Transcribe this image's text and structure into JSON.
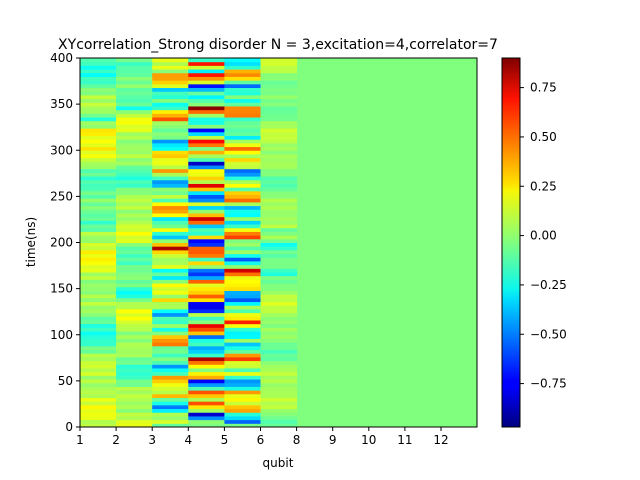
{
  "chart_data": {
    "type": "heatmap",
    "title": "XYcorrelation_Strong disorder  N =  3,excitation=4,correlator=7",
    "xlabel": "qubit",
    "ylabel": "time(ns)",
    "x_tick_labels": [
      "1",
      "2",
      "3",
      "4",
      "5",
      "6",
      "8",
      "9",
      "10",
      "11",
      "12"
    ],
    "y_ticks": [
      0,
      50,
      100,
      150,
      200,
      250,
      300,
      350,
      400
    ],
    "ylim": [
      0,
      400
    ],
    "colorbar": {
      "colormap": "jet",
      "vmin": -0.97,
      "vmax": 0.9,
      "ticks": [
        -0.75,
        -0.5,
        -0.25,
        0.0,
        0.25,
        0.5,
        0.75
      ],
      "tick_labels": [
        "−0.75",
        "−0.50",
        "−0.25",
        "0.00",
        "0.25",
        "0.50",
        "0.75"
      ]
    },
    "columns": [
      {
        "qubit": "1",
        "character": "slow oscillation between about -0.2 and 0.3, strongest near 320 ns (0.3) and 210 ns (0.25)"
      },
      {
        "qubit": "2",
        "character": "oscillation between about -0.3 and 0.2, dips near 345 ns and 145 ns"
      },
      {
        "qubit": "3",
        "character": "fast oscillation, amplitude about 0.5, peaks near 370, 215, 195, 165 ns"
      },
      {
        "qubit": "4",
        "character": "strongest, fast oscillation with amplitude near 0.9, extremes near 390 ns and 200 ns"
      },
      {
        "qubit": "5",
        "character": "fast oscillation, amplitude about 0.5 to 0.9, minimum near 395 ns"
      },
      {
        "qubit": "6",
        "character": "weaker oscillation, about -0.3 to 0.2, mostly near 210 ns and 170 ns"
      },
      {
        "qubit": "8",
        "character": "near zero"
      },
      {
        "qubit": "9",
        "character": "near zero"
      },
      {
        "qubit": "10",
        "character": "near zero"
      },
      {
        "qubit": "11",
        "character": "near zero"
      },
      {
        "qubit": "12",
        "character": "near zero"
      }
    ],
    "grid": false
  }
}
